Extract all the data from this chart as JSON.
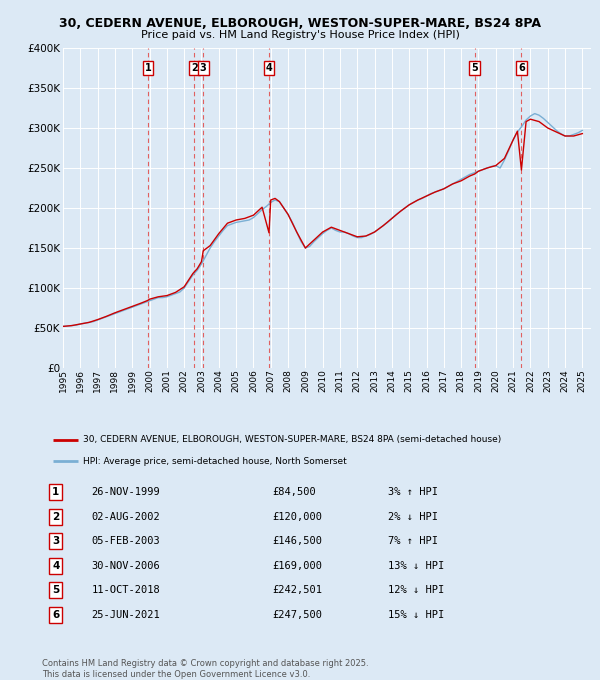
{
  "title_line1": "30, CEDERN AVENUE, ELBOROUGH, WESTON-SUPER-MARE, BS24 8PA",
  "title_line2": "Price paid vs. HM Land Registry's House Price Index (HPI)",
  "legend_label_red": "30, CEDERN AVENUE, ELBOROUGH, WESTON-SUPER-MARE, BS24 8PA (semi-detached house)",
  "legend_label_blue": "HPI: Average price, semi-detached house, North Somerset",
  "footer": "Contains HM Land Registry data © Crown copyright and database right 2025.\nThis data is licensed under the Open Government Licence v3.0.",
  "ylim": [
    0,
    400000
  ],
  "yticks": [
    0,
    50000,
    100000,
    150000,
    200000,
    250000,
    300000,
    350000,
    400000
  ],
  "ytick_labels": [
    "£0",
    "£50K",
    "£100K",
    "£150K",
    "£200K",
    "£250K",
    "£300K",
    "£350K",
    "£400K"
  ],
  "xlim_start": 1995.0,
  "xlim_end": 2025.5,
  "background_color": "#dce9f5",
  "grid_color": "#ffffff",
  "sales": [
    {
      "num": 1,
      "date": "26-NOV-1999",
      "year": 1999.9,
      "price": 84500,
      "label": "3% ↑ HPI"
    },
    {
      "num": 2,
      "date": "02-AUG-2002",
      "year": 2002.58,
      "price": 120000,
      "label": "2% ↓ HPI"
    },
    {
      "num": 3,
      "date": "05-FEB-2003",
      "year": 2003.1,
      "price": 146500,
      "label": "7% ↑ HPI"
    },
    {
      "num": 4,
      "date": "30-NOV-2006",
      "year": 2006.9,
      "price": 169000,
      "label": "13% ↓ HPI"
    },
    {
      "num": 5,
      "date": "11-OCT-2018",
      "year": 2018.78,
      "price": 242501,
      "label": "12% ↓ HPI"
    },
    {
      "num": 6,
      "date": "25-JUN-2021",
      "year": 2021.48,
      "price": 247500,
      "label": "15% ↓ HPI"
    }
  ],
  "red_line_color": "#cc0000",
  "blue_line_color": "#7bafd4",
  "vline_color": "#e06060",
  "hpi_data_years": [
    1995.0,
    1995.25,
    1995.5,
    1995.75,
    1996.0,
    1996.25,
    1996.5,
    1996.75,
    1997.0,
    1997.25,
    1997.5,
    1997.75,
    1998.0,
    1998.25,
    1998.5,
    1998.75,
    1999.0,
    1999.25,
    1999.5,
    1999.75,
    2000.0,
    2000.25,
    2000.5,
    2000.75,
    2001.0,
    2001.25,
    2001.5,
    2001.75,
    2002.0,
    2002.25,
    2002.5,
    2002.75,
    2003.0,
    2003.25,
    2003.5,
    2003.75,
    2004.0,
    2004.25,
    2004.5,
    2004.75,
    2005.0,
    2005.25,
    2005.5,
    2005.75,
    2006.0,
    2006.25,
    2006.5,
    2006.75,
    2007.0,
    2007.25,
    2007.5,
    2007.75,
    2008.0,
    2008.25,
    2008.5,
    2008.75,
    2009.0,
    2009.25,
    2009.5,
    2009.75,
    2010.0,
    2010.25,
    2010.5,
    2010.75,
    2011.0,
    2011.25,
    2011.5,
    2011.75,
    2012.0,
    2012.25,
    2012.5,
    2012.75,
    2013.0,
    2013.25,
    2013.5,
    2013.75,
    2014.0,
    2014.25,
    2014.5,
    2014.75,
    2015.0,
    2015.25,
    2015.5,
    2015.75,
    2016.0,
    2016.25,
    2016.5,
    2016.75,
    2017.0,
    2017.25,
    2017.5,
    2017.75,
    2018.0,
    2018.25,
    2018.5,
    2018.75,
    2019.0,
    2019.25,
    2019.5,
    2019.75,
    2020.0,
    2020.25,
    2020.5,
    2020.75,
    2021.0,
    2021.25,
    2021.5,
    2021.75,
    2022.0,
    2022.25,
    2022.5,
    2022.75,
    2023.0,
    2023.25,
    2023.5,
    2023.75,
    2024.0,
    2024.25,
    2024.5,
    2024.75,
    2025.0
  ],
  "hpi_data_values": [
    52000,
    52500,
    53000,
    53500,
    55000,
    56000,
    57000,
    58000,
    60000,
    62000,
    64000,
    66000,
    68000,
    70000,
    72000,
    74000,
    76000,
    78000,
    80000,
    82000,
    84000,
    86000,
    88000,
    88000,
    89000,
    91000,
    93000,
    95000,
    100000,
    108000,
    116000,
    122000,
    130000,
    140000,
    150000,
    158000,
    165000,
    172000,
    178000,
    180000,
    182000,
    183000,
    184000,
    185000,
    188000,
    193000,
    198000,
    202000,
    207000,
    210000,
    208000,
    200000,
    192000,
    182000,
    170000,
    158000,
    150000,
    152000,
    158000,
    163000,
    168000,
    172000,
    175000,
    172000,
    170000,
    170000,
    168000,
    165000,
    163000,
    163000,
    165000,
    167000,
    170000,
    174000,
    178000,
    182000,
    187000,
    192000,
    196000,
    200000,
    204000,
    207000,
    210000,
    212000,
    215000,
    218000,
    220000,
    222000,
    224000,
    227000,
    230000,
    233000,
    236000,
    239000,
    242000,
    244000,
    246000,
    248000,
    250000,
    252000,
    253000,
    250000,
    260000,
    272000,
    285000,
    295000,
    302000,
    310000,
    315000,
    318000,
    316000,
    312000,
    307000,
    302000,
    297000,
    293000,
    290000,
    290000,
    292000,
    294000,
    297000
  ],
  "price_data_years": [
    1995.0,
    1995.5,
    1996.0,
    1996.5,
    1997.0,
    1997.5,
    1998.0,
    1998.5,
    1999.0,
    1999.5,
    1999.9,
    2000.0,
    2000.5,
    2001.0,
    2001.5,
    2002.0,
    2002.5,
    2002.58,
    2002.75,
    2003.0,
    2003.1,
    2003.5,
    2004.0,
    2004.5,
    2005.0,
    2005.5,
    2006.0,
    2006.5,
    2006.9,
    2007.0,
    2007.25,
    2007.5,
    2007.75,
    2008.0,
    2008.5,
    2009.0,
    2009.5,
    2010.0,
    2010.5,
    2011.0,
    2011.5,
    2012.0,
    2012.5,
    2013.0,
    2013.5,
    2014.0,
    2014.5,
    2015.0,
    2015.5,
    2016.0,
    2016.5,
    2017.0,
    2017.5,
    2018.0,
    2018.5,
    2018.78,
    2019.0,
    2019.5,
    2020.0,
    2020.5,
    2021.0,
    2021.25,
    2021.48,
    2021.75,
    2022.0,
    2022.5,
    2023.0,
    2023.5,
    2024.0,
    2024.5,
    2025.0
  ],
  "price_data_values": [
    52000,
    53000,
    55000,
    57000,
    60500,
    64500,
    69000,
    73000,
    77000,
    81000,
    84500,
    86000,
    89000,
    90500,
    94500,
    101500,
    118000,
    120000,
    124000,
    133000,
    146500,
    153000,
    168000,
    181000,
    185000,
    187000,
    191000,
    201000,
    169000,
    210000,
    212000,
    208000,
    200000,
    192000,
    170000,
    150000,
    160000,
    170000,
    176000,
    172000,
    168000,
    164000,
    165000,
    170000,
    178000,
    187000,
    196000,
    204000,
    210000,
    215000,
    220000,
    224000,
    230000,
    234000,
    240000,
    242501,
    246000,
    250000,
    253000,
    262000,
    285000,
    296000,
    247500,
    308000,
    311000,
    308000,
    300000,
    295000,
    290000,
    290000,
    293000
  ]
}
